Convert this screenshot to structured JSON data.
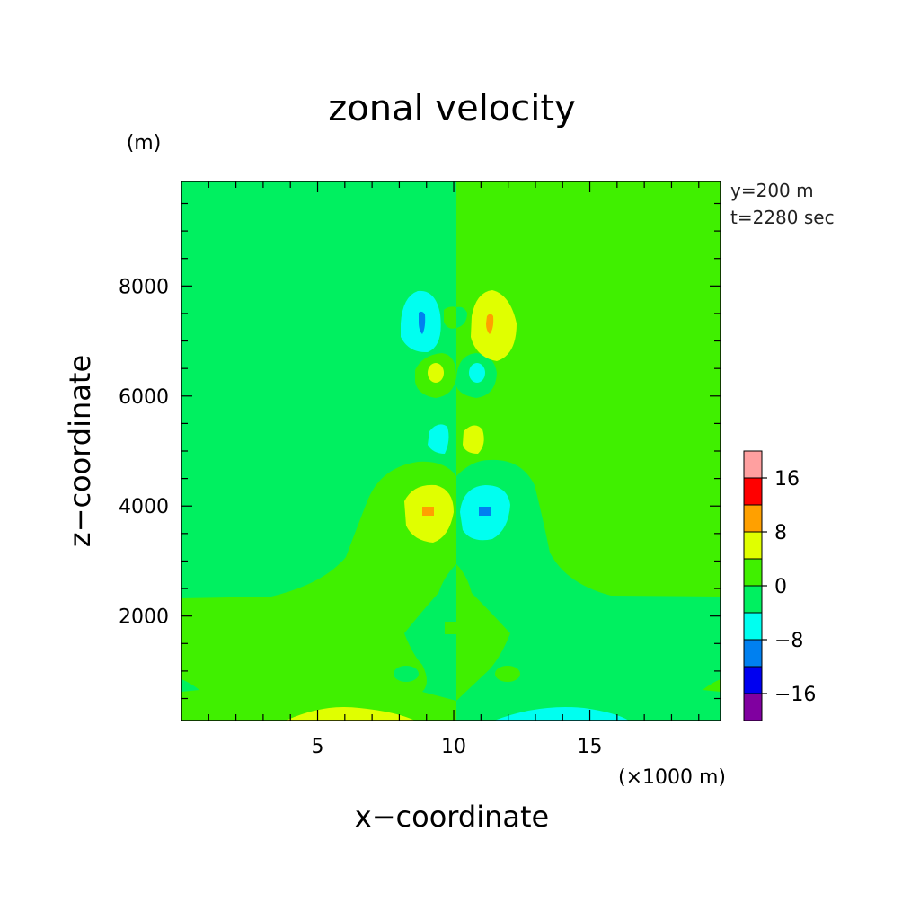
{
  "chart_data": {
    "type": "heatmap",
    "title": "zonal velocity",
    "xlabel": "x−coordinate",
    "ylabel": "z−coordinate",
    "x_unit": "(×1000 m)",
    "y_unit": "(m)",
    "annotations": [
      "y=200 m",
      "t=2280 sec"
    ],
    "xlim": [
      0,
      19.8
    ],
    "ylim": [
      100,
      9900
    ],
    "x_ticks": [
      5,
      10,
      15
    ],
    "x_tick_labels": [
      "5",
      "10",
      "15"
    ],
    "y_ticks": [
      2000,
      4000,
      6000,
      8000
    ],
    "y_tick_labels": [
      "2000",
      "4000",
      "6000",
      "8000"
    ],
    "colorbar": {
      "levels": [
        -20,
        -16,
        -12,
        -8,
        -4,
        0,
        4,
        8,
        12,
        16,
        20
      ],
      "colors": [
        "#8000a0",
        "#0000f0",
        "#0080f0",
        "#00fff0",
        "#00f060",
        "#40f000",
        "#e0ff00",
        "#ffa000",
        "#ff0000",
        "#ffa0a0"
      ],
      "tick_labels": [
        "16",
        "8",
        "0",
        "−8",
        "−16"
      ],
      "tick_values": [
        16,
        8,
        0,
        -8,
        -16
      ]
    },
    "background_level": "-4 to 0 (left half) / 0 to 4 (right half)",
    "features": [
      {
        "x": 8.9,
        "z": 7250,
        "min": -12,
        "description": "negative cell"
      },
      {
        "x": 11.4,
        "z": 7300,
        "max": 12,
        "description": "positive cell"
      },
      {
        "x": 9.5,
        "z": 6400,
        "max": 8,
        "description": "positive cell"
      },
      {
        "x": 10.7,
        "z": 6450,
        "min": -8,
        "description": "negative cell"
      },
      {
        "x": 9.6,
        "z": 5150,
        "min": -8,
        "description": "negative cell"
      },
      {
        "x": 10.6,
        "z": 5150,
        "max": 8,
        "description": "positive cell"
      },
      {
        "x": 9.1,
        "z": 3950,
        "max": 12,
        "description": "positive cell"
      },
      {
        "x": 11.0,
        "z": 3950,
        "min": -12,
        "description": "negative cell"
      },
      {
        "x": 6.0,
        "z": 150,
        "max": 8,
        "description": "surface positive"
      },
      {
        "x": 14.5,
        "z": 150,
        "min": -8,
        "description": "surface negative"
      }
    ]
  }
}
